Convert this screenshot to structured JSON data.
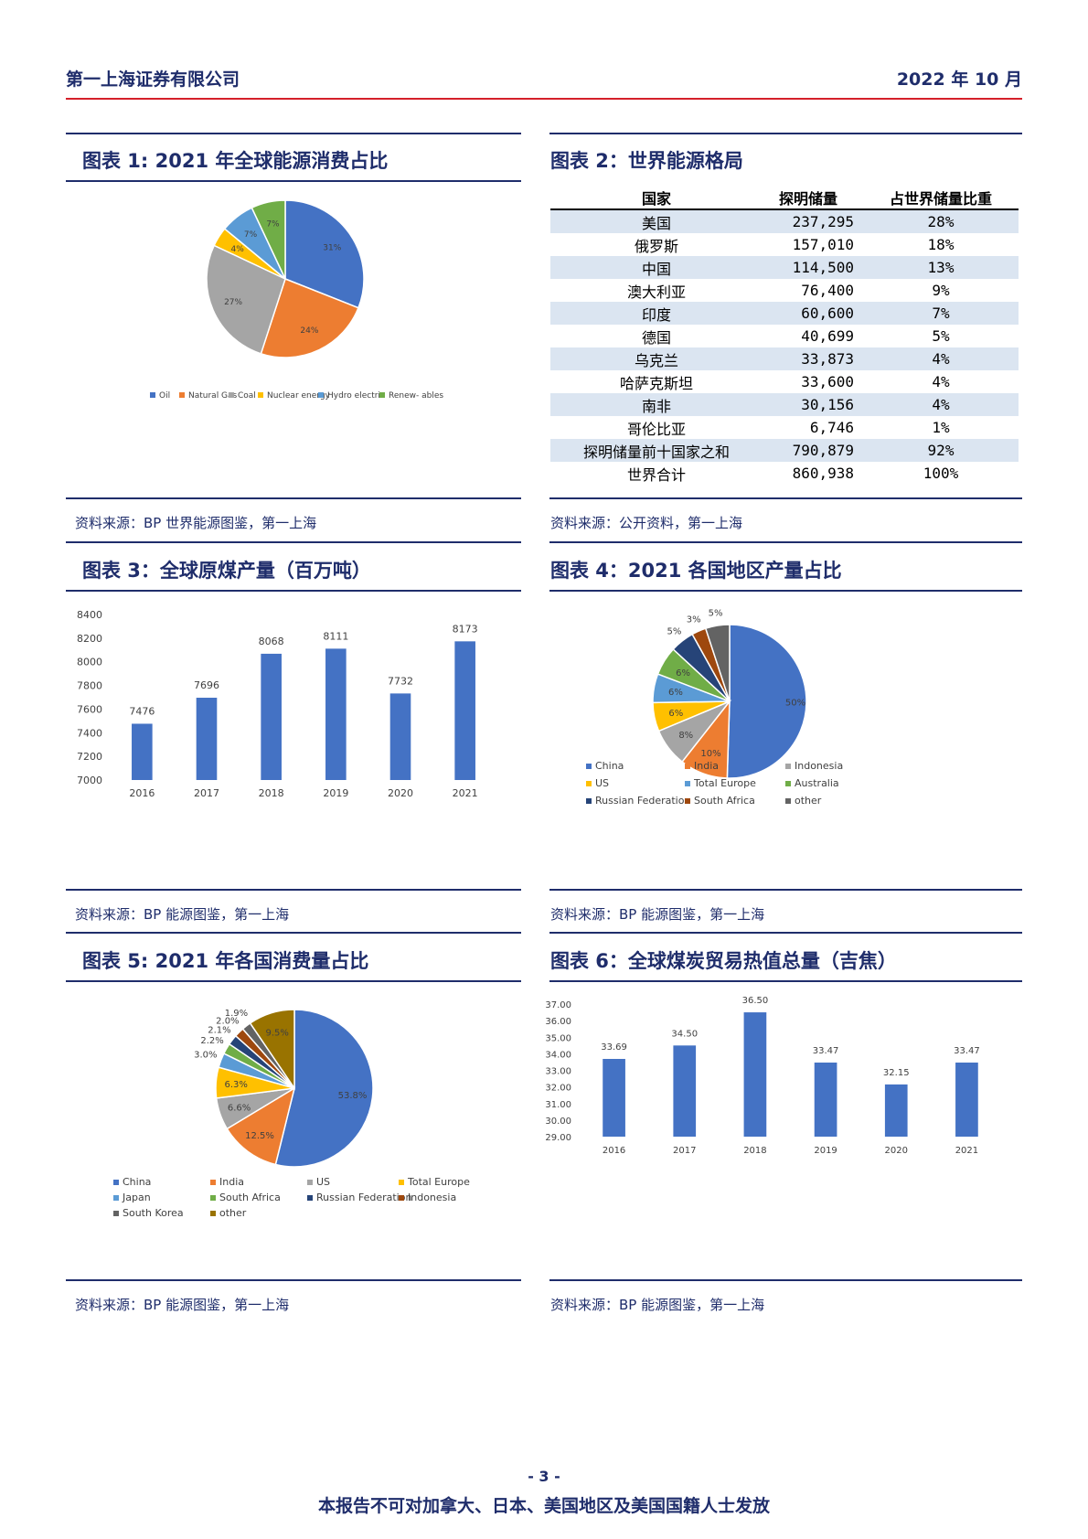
{
  "header": {
    "company": "第一上海证券有限公司",
    "date": "2022 年 10 月"
  },
  "figures": {
    "fig1": {
      "title": "图表 1: 2021 年全球能源消费占比",
      "source": "资料来源：BP 世界能源图鉴，第一上海"
    },
    "fig2": {
      "title": "图表 2：世界能源格局",
      "source": "资料来源：公开资料，第一上海"
    },
    "fig3": {
      "title": "图表 3：全球原煤产量（百万吨）",
      "source": "资料来源：BP 能源图鉴，第一上海"
    },
    "fig4": {
      "title": "图表 4：2021 各国地区产量占比",
      "source": "资料来源：BP 能源图鉴，第一上海"
    },
    "fig5": {
      "title": "图表 5: 2021 年各国消费量占比",
      "source": "资料来源：BP 能源图鉴，第一上海"
    },
    "fig6": {
      "title": "图表 6：全球煤炭贸易热值总量（吉焦）",
      "source": "资料来源：BP 能源图鉴，第一上海"
    }
  },
  "reserves_table": {
    "headers": [
      "国家",
      "探明储量",
      "占世界储量比重"
    ],
    "rows": [
      [
        "美国",
        "237,295",
        "28%"
      ],
      [
        "俄罗斯",
        "157,010",
        "18%"
      ],
      [
        "中国",
        "114,500",
        "13%"
      ],
      [
        "澳大利亚",
        "76,400",
        "9%"
      ],
      [
        "印度",
        "60,600",
        "7%"
      ],
      [
        "德国",
        "40,699",
        "5%"
      ],
      [
        "乌克兰",
        "33,873",
        "4%"
      ],
      [
        "哈萨克斯坦",
        "33,600",
        "4%"
      ],
      [
        "南非",
        "30,156",
        "4%"
      ],
      [
        "哥伦比亚",
        "6,746",
        "1%"
      ],
      [
        "探明储量前十国家之和",
        "790,879",
        "92%"
      ],
      [
        "世界合计",
        "860,938",
        "100%"
      ]
    ]
  },
  "chart_data": [
    {
      "id": "fig1",
      "type": "pie",
      "labels": [
        "Oil",
        "Natural Gas",
        "Coal",
        "Nuclear energy",
        "Hydro electric",
        "Renew- ables"
      ],
      "values": [
        31,
        24,
        27,
        4,
        7,
        7
      ],
      "value_labels": [
        "31%",
        "24%",
        "27%",
        "4%",
        "7%",
        "7%"
      ],
      "colors": [
        "#4472c4",
        "#ed7d31",
        "#a5a5a5",
        "#ffc000",
        "#5b9bd5",
        "#70ad47"
      ],
      "legend": "bottom"
    },
    {
      "id": "fig3",
      "type": "bar",
      "categories": [
        "2016",
        "2017",
        "2018",
        "2019",
        "2020",
        "2021"
      ],
      "values": [
        7476,
        7696,
        8068,
        8111,
        7732,
        8173
      ],
      "ylim": [
        7000,
        8400
      ],
      "yticks": [
        "7000",
        "7200",
        "7400",
        "7600",
        "7800",
        "8000",
        "8200",
        "8400"
      ],
      "color": "#4472c4"
    },
    {
      "id": "fig4",
      "type": "pie",
      "labels": [
        "China",
        "India",
        "Indonesia",
        "US",
        "Total Europe",
        "Australia",
        "Russian Federation",
        "South Africa",
        "other"
      ],
      "values": [
        50,
        10,
        8,
        6,
        6,
        6,
        5,
        3,
        5
      ],
      "value_labels": [
        "50%",
        "10%",
        "8%",
        "6%",
        "6%",
        "6%",
        "5%",
        "3%",
        "5%"
      ],
      "colors": [
        "#4472c4",
        "#ed7d31",
        "#a5a5a5",
        "#ffc000",
        "#5b9bd5",
        "#70ad47",
        "#264478",
        "#9e480e",
        "#636363"
      ],
      "legend": "bottom"
    },
    {
      "id": "fig5",
      "type": "pie",
      "labels": [
        "China",
        "India",
        "US",
        "Total Europe",
        "Japan",
        "South Africa",
        "Russian Federation",
        "Indonesia",
        "South Korea",
        "other"
      ],
      "values": [
        53.8,
        12.5,
        6.6,
        6.3,
        3.0,
        2.2,
        2.1,
        2.0,
        1.9,
        9.5
      ],
      "value_labels": [
        "53.8%",
        "12.5%",
        "6.6%",
        "6.3%",
        "3.0%",
        "2.2%",
        "2.1%",
        "2.0%",
        "1.9%",
        "9.5%"
      ],
      "colors": [
        "#4472c4",
        "#ed7d31",
        "#a5a5a5",
        "#ffc000",
        "#5b9bd5",
        "#70ad47",
        "#264478",
        "#9e480e",
        "#636363",
        "#997300"
      ],
      "legend": "bottom"
    },
    {
      "id": "fig6",
      "type": "bar",
      "categories": [
        "2016",
        "2017",
        "2018",
        "2019",
        "2020",
        "2021"
      ],
      "values": [
        33.69,
        34.5,
        36.5,
        33.47,
        32.15,
        33.47
      ],
      "value_labels": [
        "33.69",
        "34.50",
        "36.50",
        "33.47",
        "32.15",
        "33.47"
      ],
      "ylim": [
        29,
        37
      ],
      "yticks": [
        "29.00",
        "30.00",
        "31.00",
        "32.00",
        "33.00",
        "34.00",
        "35.00",
        "36.00",
        "37.00"
      ],
      "color": "#4472c4"
    }
  ],
  "footer": {
    "page": "- 3 -",
    "disclaimer": "本报告不可对加拿大、日本、美国地区及美国国籍人士发放"
  }
}
